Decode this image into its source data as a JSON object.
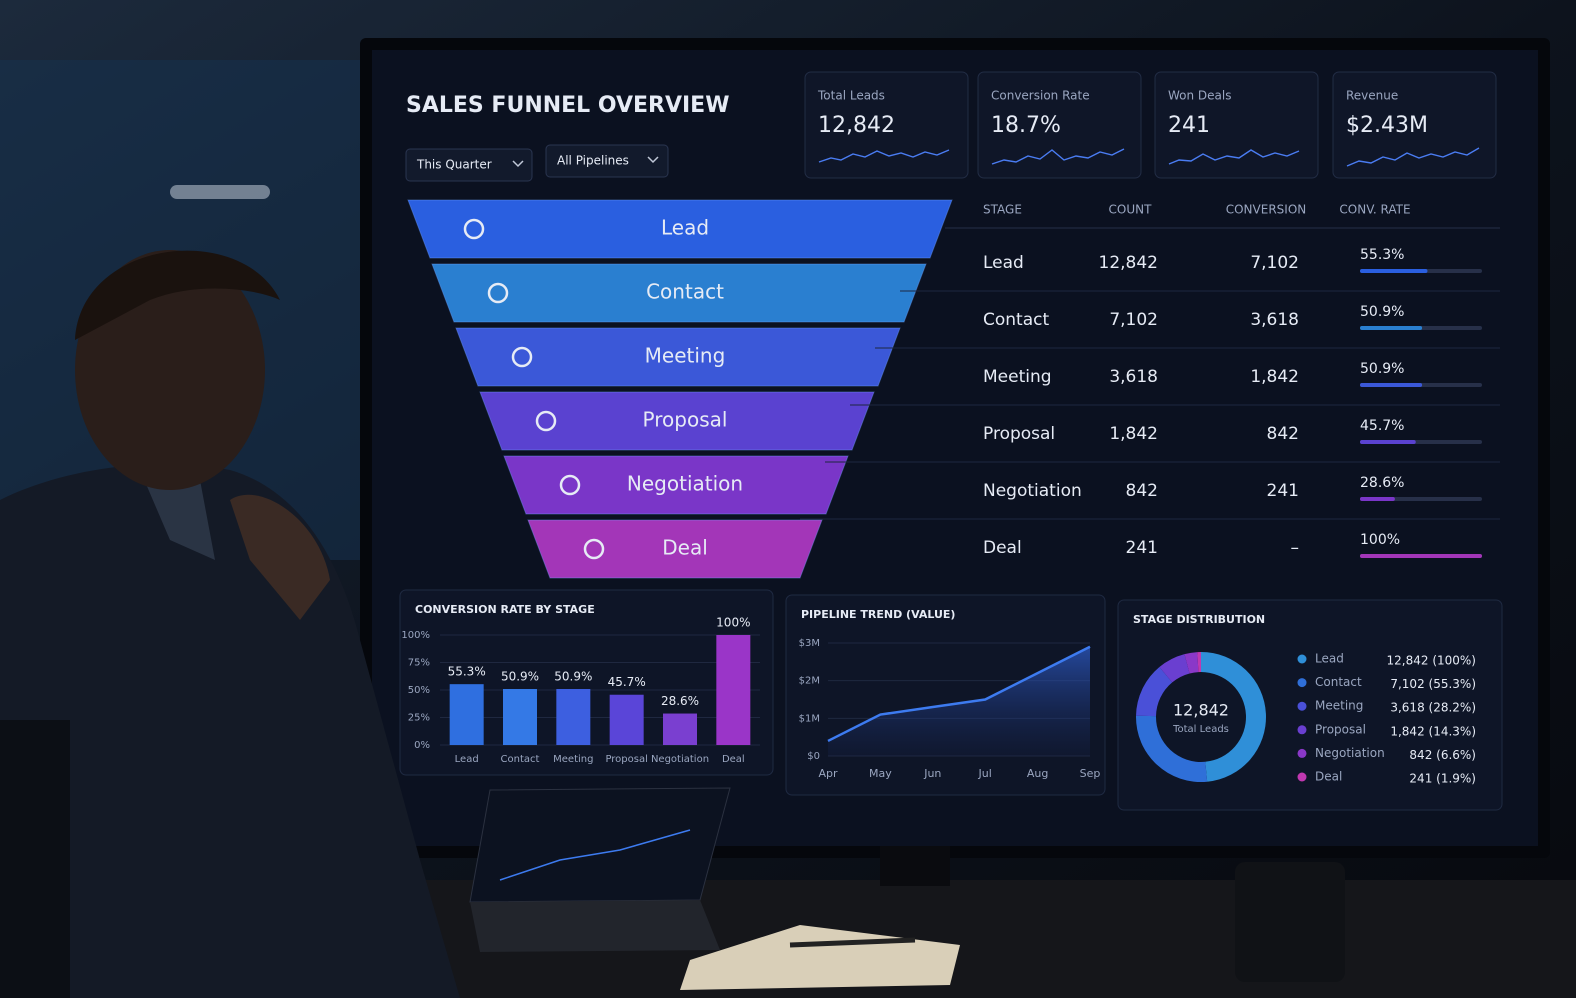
{
  "header": {
    "title": "SALES FUNNEL OVERVIEW",
    "filters": [
      "This Quarter",
      "All Pipelines"
    ]
  },
  "kpis": [
    {
      "label": "Total Leads",
      "value": "12,842"
    },
    {
      "label": "Conversion Rate",
      "value": "18.7%"
    },
    {
      "label": "Won Deals",
      "value": "241"
    },
    {
      "label": "Revenue",
      "value": "$2.43M"
    }
  ],
  "funnel": {
    "stages": [
      "Lead",
      "Contact",
      "Meeting",
      "Proposal",
      "Negotiation",
      "Deal"
    ]
  },
  "table": {
    "header": [
      "STAGE",
      "COUNT",
      "CONVERSION",
      "CONV. RATE"
    ],
    "rows": [
      {
        "stage": "Lead",
        "count": "12,842",
        "conversion": "7,102",
        "rate": {
          "value": 55.3,
          "label": "55.3%"
        }
      },
      {
        "stage": "Contact",
        "count": "7,102",
        "conversion": "3,618",
        "rate": {
          "value": 50.9,
          "label": "50.9%"
        }
      },
      {
        "stage": "Meeting",
        "count": "3,618",
        "conversion": "1,842",
        "rate": {
          "value": 50.9,
          "label": "50.9%"
        }
      },
      {
        "stage": "Proposal",
        "count": "1,842",
        "conversion": "842",
        "rate": {
          "value": 45.7,
          "label": "45.7%"
        }
      },
      {
        "stage": "Negotiation",
        "count": "842",
        "conversion": "241",
        "rate": {
          "value": 28.6,
          "label": "28.6%"
        }
      },
      {
        "stage": "Deal",
        "count": "241",
        "conversion": "–",
        "rate": {
          "value": 100,
          "label": "100%"
        }
      }
    ]
  },
  "chart_data": [
    {
      "type": "bar",
      "title": "CONVERSION RATE BY STAGE",
      "categories": [
        "Lead",
        "Contact",
        "Meeting",
        "Proposal",
        "Negotiation",
        "Deal"
      ],
      "values": [
        55.3,
        50.9,
        50.9,
        45.7,
        28.6,
        100
      ],
      "value_labels": [
        "55.3%",
        "50.9%",
        "50.9%",
        "45.7%",
        "28.6%",
        "100%"
      ],
      "colors": [
        "#2f6fe0",
        "#3479e6",
        "#3d5fe0",
        "#5a45d8",
        "#7a3fd0",
        "#9a35c8"
      ],
      "ylim": [
        0,
        100
      ],
      "yticks": [
        {
          "value": 0,
          "label": "0%"
        },
        {
          "value": 25,
          "label": "25%"
        },
        {
          "value": 50,
          "label": "50%"
        },
        {
          "value": 75,
          "label": "75%"
        },
        {
          "value": 100,
          "label": "100%"
        }
      ],
      "grid": true
    },
    {
      "type": "area",
      "title": "PIPELINE TREND (VALUE)",
      "categories": [
        "Apr",
        "May",
        "Jun",
        "Jul",
        "Aug",
        "Sep"
      ],
      "values": [
        0.4,
        1.1,
        1.3,
        1.5,
        2.2,
        2.9
      ],
      "color": "#3d7bf0",
      "ylim": [
        0,
        3
      ],
      "yticks": [
        {
          "value": 0,
          "label": "$0"
        },
        {
          "value": 1,
          "label": "$1M"
        },
        {
          "value": 2,
          "label": "$2M"
        },
        {
          "value": 3,
          "label": "$3M"
        }
      ],
      "grid": true
    },
    {
      "type": "pie",
      "title": "STAGE DISTRIBUTION",
      "center_value": "12,842",
      "center_label": "Total Leads",
      "categories": [
        "Lead",
        "Contact",
        "Meeting",
        "Proposal",
        "Negotiation",
        "Deal"
      ],
      "values": [
        12842,
        7102,
        3618,
        1842,
        842,
        241
      ],
      "value_labels": [
        "12,842 (100%)",
        "7,102 (55.3%)",
        "3,618 (28.2%)",
        "1,842 (14.3%)",
        "842 (6.6%)",
        "241 (1.9%)"
      ],
      "colors": [
        "#2f8fd8",
        "#2f6fd8",
        "#4a50d8",
        "#6a3fd0",
        "#8a38c8",
        "#c038b0"
      ]
    }
  ]
}
